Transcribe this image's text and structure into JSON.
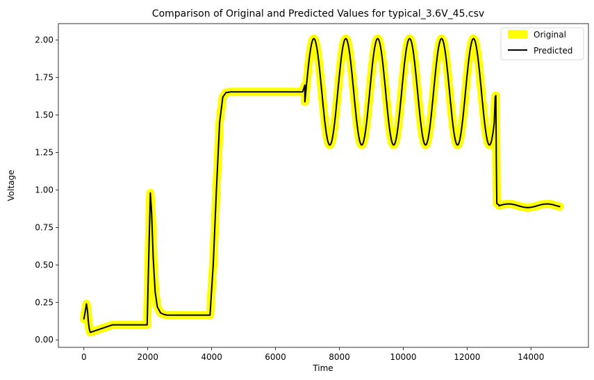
{
  "chart_data": {
    "type": "line",
    "title": "Comparison of Original and Predicted Values for typical_3.6V_45.csv",
    "xlabel": "Time",
    "ylabel": "Voltage",
    "xlim": [
      -800,
      15800
    ],
    "ylim": [
      -0.05,
      2.11
    ],
    "xticks": [
      0,
      2000,
      4000,
      6000,
      8000,
      10000,
      12000,
      14000
    ],
    "yticks": [
      0.0,
      0.25,
      0.5,
      0.75,
      1.0,
      1.25,
      1.5,
      1.75,
      2.0
    ],
    "xtick_labels": [
      "0",
      "2000",
      "4000",
      "6000",
      "8000",
      "10000",
      "12000",
      "14000"
    ],
    "ytick_labels": [
      "0.00",
      "0.25",
      "0.50",
      "0.75",
      "1.00",
      "1.25",
      "1.50",
      "1.75",
      "2.00"
    ],
    "grid": false,
    "legend_position": "top-right",
    "series": [
      {
        "name": "Original",
        "color": "#ffff00",
        "linewidth": 12
      },
      {
        "name": "Predicted",
        "color": "#000000",
        "linewidth": 2
      }
    ],
    "segments": [
      {
        "kind": "points",
        "x": [
          0,
          50,
          80,
          110,
          140,
          170,
          200
        ],
        "y": [
          0.14,
          0.2,
          0.24,
          0.2,
          0.12,
          0.07,
          0.05
        ]
      },
      {
        "kind": "ramp",
        "x0": 200,
        "x1": 900,
        "y0": 0.05,
        "y1": 0.1
      },
      {
        "kind": "hold",
        "x0": 900,
        "x1": 1980,
        "y": 0.1
      },
      {
        "kind": "points",
        "x": [
          1980,
          2030,
          2080,
          2120,
          2170,
          2230,
          2300,
          2400,
          2500,
          2600
        ],
        "y": [
          0.1,
          0.55,
          0.98,
          0.85,
          0.55,
          0.32,
          0.22,
          0.18,
          0.17,
          0.165
        ]
      },
      {
        "kind": "hold",
        "x0": 2600,
        "x1": 3950,
        "y": 0.165
      },
      {
        "kind": "points",
        "x": [
          3950,
          4050,
          4150,
          4250,
          4350,
          4450,
          4600
        ],
        "y": [
          0.165,
          0.5,
          1.0,
          1.45,
          1.62,
          1.65,
          1.655
        ]
      },
      {
        "kind": "hold",
        "x0": 4600,
        "x1": 6850,
        "y": 1.655
      },
      {
        "kind": "ramp",
        "x0": 6850,
        "x1": 6920,
        "y0": 1.655,
        "y1": 1.7
      },
      {
        "kind": "sine",
        "x0": 6920,
        "x1": 12850,
        "period": 1000,
        "min": 1.3,
        "max": 2.01,
        "peak_x": 7200
      },
      {
        "kind": "points",
        "x": [
          12850,
          12880,
          12900,
          12915,
          12930,
          12960,
          13000
        ],
        "y": [
          1.45,
          1.62,
          1.63,
          1.2,
          0.91,
          0.905,
          0.9
        ]
      },
      {
        "kind": "wave",
        "x0": 13000,
        "x1": 14900,
        "base": 0.895,
        "amp": 0.012,
        "period": 1200
      }
    ]
  }
}
